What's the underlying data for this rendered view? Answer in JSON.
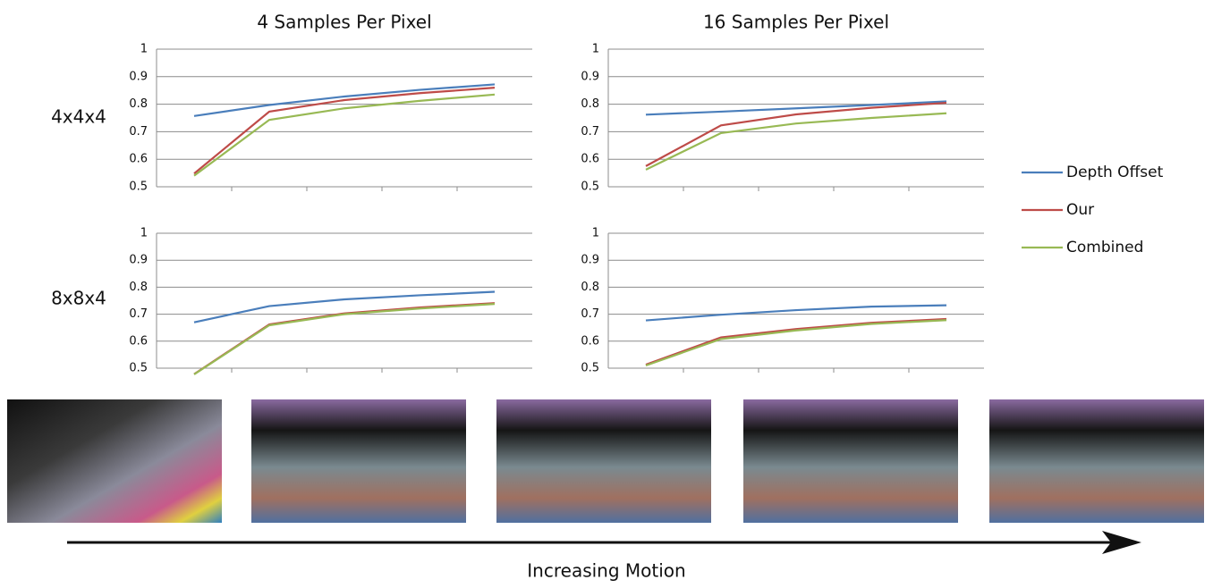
{
  "row_labels": [
    "4x4x4",
    "8x8x4"
  ],
  "caption": "Increasing Motion",
  "chart_data": [
    {
      "type": "line",
      "title": "4 Samples Per Pixel",
      "categories": [
        null,
        null,
        null,
        null,
        null
      ],
      "ylim": [
        0.5,
        1
      ],
      "yticks": [
        0.5,
        0.6,
        0.7,
        0.8,
        0.9,
        1
      ],
      "grid": true,
      "legend": "right",
      "series": [
        {
          "name": "Depth Offset",
          "color": "#4a7ebb",
          "values": [
            0.757,
            0.797,
            0.828,
            0.852,
            0.872
          ]
        },
        {
          "name": "Our",
          "color": "#be4b48",
          "values": [
            0.548,
            0.773,
            0.815,
            0.84,
            0.86
          ]
        },
        {
          "name": "Combined",
          "color": "#98b954",
          "values": [
            0.54,
            0.743,
            0.785,
            0.812,
            0.835
          ]
        }
      ]
    },
    {
      "type": "line",
      "title": "16 Samples Per Pixel",
      "categories": [
        null,
        null,
        null,
        null,
        null
      ],
      "ylim": [
        0.5,
        1
      ],
      "yticks": [
        0.5,
        0.6,
        0.7,
        0.8,
        0.9,
        1
      ],
      "grid": true,
      "series": [
        {
          "color": "#4a7ebb",
          "values": [
            0.762,
            0.773,
            0.785,
            0.797,
            0.81
          ]
        },
        {
          "color": "#be4b48",
          "values": [
            0.575,
            0.723,
            0.763,
            0.787,
            0.805
          ]
        },
        {
          "color": "#98b954",
          "values": [
            0.562,
            0.695,
            0.73,
            0.75,
            0.767
          ]
        }
      ]
    },
    {
      "type": "line",
      "categories": [
        null,
        null,
        null,
        null,
        null
      ],
      "ylim": [
        0.5,
        1
      ],
      "yticks": [
        0.5,
        0.6,
        0.7,
        0.8,
        0.9,
        1
      ],
      "grid": true,
      "series": [
        {
          "color": "#4a7ebb",
          "values": [
            0.67,
            0.73,
            0.755,
            0.77,
            0.783
          ]
        },
        {
          "color": "#be4b48",
          "values": [
            0.478,
            0.662,
            0.703,
            0.725,
            0.741
          ]
        },
        {
          "color": "#98b954",
          "values": [
            0.477,
            0.659,
            0.7,
            0.721,
            0.738
          ]
        }
      ]
    },
    {
      "type": "line",
      "categories": [
        null,
        null,
        null,
        null,
        null
      ],
      "ylim": [
        0.5,
        1
      ],
      "yticks": [
        0.5,
        0.6,
        0.7,
        0.8,
        0.9,
        1
      ],
      "grid": true,
      "series": [
        {
          "color": "#4a7ebb",
          "values": [
            0.677,
            0.698,
            0.715,
            0.728,
            0.733
          ]
        },
        {
          "color": "#be4b48",
          "values": [
            0.513,
            0.614,
            0.645,
            0.668,
            0.682
          ]
        },
        {
          "color": "#98b954",
          "values": [
            0.51,
            0.608,
            0.64,
            0.664,
            0.678
          ]
        }
      ]
    }
  ]
}
